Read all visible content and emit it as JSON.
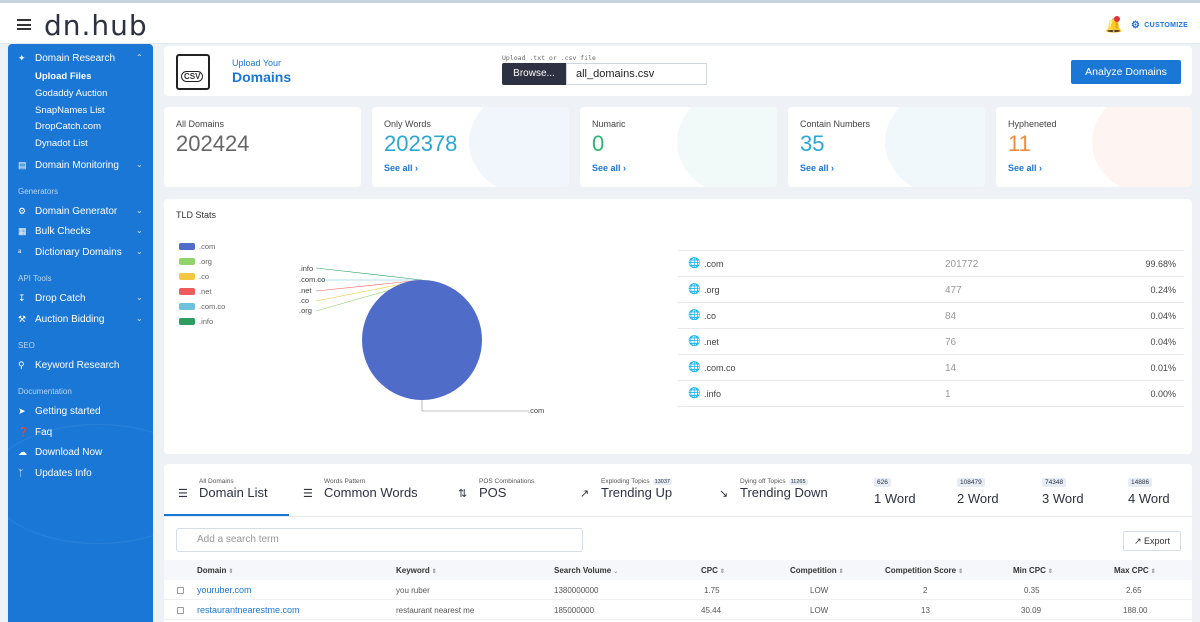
{
  "header": {
    "logo": "dn.hub",
    "customize_label": "CUSTOMIZE"
  },
  "sidebar": {
    "domain_research": "Domain Research",
    "sub_items": [
      "Upload Files",
      "Godaddy Auction",
      "SnapNames List",
      "DropCatch.com",
      "Dynadot List"
    ],
    "domain_monitoring": "Domain Monitoring",
    "sections": {
      "generators": "Generators",
      "api_tools": "API Tools",
      "seo": "SEO",
      "documentation": "Documentation"
    },
    "generators_items": [
      "Domain Generator",
      "Bulk Checks",
      "Dictionary Domains"
    ],
    "api_items": [
      "Drop Catch",
      "Auction Bidding"
    ],
    "seo_items": [
      "Keyword Research"
    ],
    "doc_items": [
      "Getting started",
      "Faq",
      "Download Now",
      "Updates Info"
    ]
  },
  "upload": {
    "subtitle": "Upload Your",
    "title": "Domains",
    "csv_label": "CSV",
    "file_hint": "Upload .txt or .csv file",
    "browse_label": "Browse...",
    "file_name": "all_domains.csv",
    "analyze_label": "Analyze Domains"
  },
  "stats": [
    {
      "label": "All Domains",
      "value": "202424",
      "color": "#666666",
      "see": ""
    },
    {
      "label": "Only Words",
      "value": "202378",
      "color": "#29a8d8",
      "see": "See all"
    },
    {
      "label": "Numaric",
      "value": "0",
      "color": "#2bb673",
      "see": "See all"
    },
    {
      "label": "Contain Numbers",
      "value": "35",
      "color": "#29a8d8",
      "see": "See all"
    },
    {
      "label": "Hypheneted",
      "value": "11",
      "color": "#f08c3a",
      "see": "See all"
    }
  ],
  "tld": {
    "title": "TLD Stats",
    "legend": [
      {
        "name": ".com",
        "color": "#4f6cc9"
      },
      {
        "name": ".org",
        "color": "#8fd36b"
      },
      {
        "name": ".co",
        "color": "#f5c842"
      },
      {
        "name": ".net",
        "color": "#ef5b5b"
      },
      {
        "name": ".com.co",
        "color": "#6fc0dc"
      },
      {
        "name": ".info",
        "color": "#2e9b5f"
      }
    ],
    "pie_labels": [
      ".info",
      ".com.co",
      ".net",
      ".co",
      ".org"
    ],
    "pie_main_label": ".com",
    "rows": [
      {
        "name": ".com",
        "count": "201772",
        "percent": "99.68%"
      },
      {
        "name": ".org",
        "count": "477",
        "percent": "0.24%"
      },
      {
        "name": ".co",
        "count": "84",
        "percent": "0.04%"
      },
      {
        "name": ".net",
        "count": "76",
        "percent": "0.04%"
      },
      {
        "name": ".com.co",
        "count": "14",
        "percent": "0.01%"
      },
      {
        "name": ".info",
        "count": "1",
        "percent": "0.00%"
      }
    ]
  },
  "tabs": [
    {
      "small": "All Domains",
      "big": "Domain List",
      "icon": "list-icon",
      "badge": ""
    },
    {
      "small": "Words Pattern",
      "big": "Common Words",
      "icon": "checklist-icon",
      "badge": ""
    },
    {
      "small": "POS Combinations",
      "big": "POS",
      "icon": "sort-icon",
      "badge": ""
    },
    {
      "small": "Exploding Topics",
      "big": "Trending Up",
      "icon": "trend-up-icon",
      "badge": "13037"
    },
    {
      "small": "Dying off Topics",
      "big": "Trending Down",
      "icon": "trend-down-icon",
      "badge": "11265"
    }
  ],
  "word_tabs": [
    {
      "count": "626",
      "label": "1 Word"
    },
    {
      "count": "108479",
      "label": "2 Word"
    },
    {
      "count": "74348",
      "label": "3 Word"
    },
    {
      "count": "14886",
      "label": "4 Word"
    }
  ],
  "table": {
    "search_placeholder": "Add a search term",
    "export_label": "Export",
    "columns": [
      "Domain",
      "Keyword",
      "Search Volume",
      "CPC",
      "Competition",
      "Competition Score",
      "Min CPC",
      "Max CPC"
    ],
    "rows": [
      {
        "domain": "youruber.com",
        "keyword": "you ruber",
        "volume": "1380000000",
        "cpc": "1.75",
        "competition": "LOW",
        "score": "2",
        "min": "0.35",
        "max": "2.65"
      },
      {
        "domain": "restaurantnearestme.com",
        "keyword": "restaurant nearest me",
        "volume": "185000000",
        "cpc": "45.44",
        "competition": "LOW",
        "score": "13",
        "min": "30.09",
        "max": "188.00"
      }
    ]
  }
}
